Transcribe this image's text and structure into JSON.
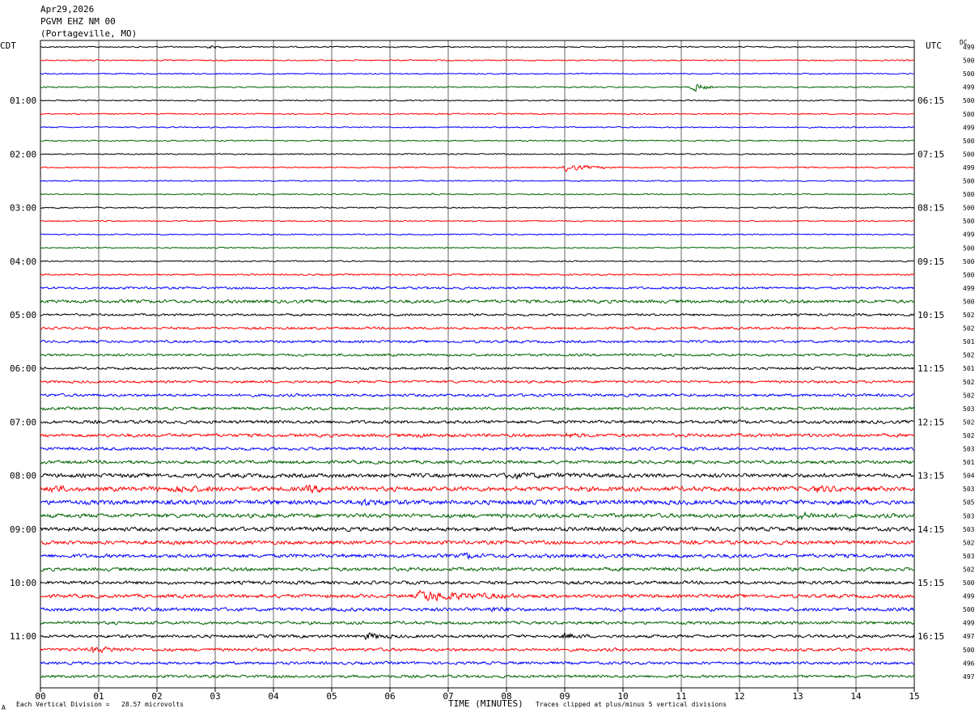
{
  "header": {
    "date": "Apr29,2026",
    "station": "PGVM EHZ NM 00",
    "location": "(Portageville, MO)"
  },
  "left_zone_label": "CDT",
  "right_zone_label": "UTC",
  "dc_label": "DC",
  "footer": {
    "scale_note": "Each Vertical Division =   28.57 microvolts",
    "clip_note": "Traces clipped at plus/minus 5 vertical divisions",
    "corner_mark": "A"
  },
  "colors": {
    "trace_cycle": [
      "#000000",
      "#ff0000",
      "#0000ff",
      "#006400"
    ],
    "grid": "#000000",
    "background": "#ffffff"
  },
  "chart_data": {
    "type": "line",
    "subtype": "helicorder",
    "xlabel": "TIME (MINUTES)",
    "x_ticks": [
      "00",
      "01",
      "02",
      "03",
      "04",
      "05",
      "06",
      "07",
      "08",
      "09",
      "10",
      "11",
      "12",
      "13",
      "14",
      "15"
    ],
    "xlim": [
      0,
      15
    ],
    "row_minutes": 15,
    "left_time_labels": [
      "01:00",
      "02:00",
      "03:00",
      "04:00",
      "05:00",
      "06:00",
      "07:00",
      "08:00",
      "09:00",
      "10:00",
      "11:00"
    ],
    "right_time_labels": [
      "06:15",
      "07:15",
      "08:15",
      "09:15",
      "10:15",
      "11:15",
      "12:15",
      "13:15",
      "14:15",
      "15:15",
      "16:15"
    ],
    "hour_label_rows": [
      4,
      8,
      12,
      16,
      20,
      24,
      28,
      32,
      36,
      40,
      44
    ],
    "dc_offsets": [
      499,
      500,
      500,
      499,
      500,
      500,
      499,
      500,
      500,
      499,
      500,
      500,
      500,
      500,
      499,
      500,
      500,
      500,
      499,
      500,
      502,
      502,
      501,
      502,
      501,
      502,
      502,
      503,
      502,
      502,
      503,
      501,
      504,
      503,
      505,
      503,
      503,
      502,
      503,
      502,
      500,
      499,
      500,
      499,
      497,
      500,
      496,
      497
    ],
    "row_amplitude": [
      1.0,
      1.0,
      1.0,
      1.0,
      1.0,
      1.0,
      1.0,
      1.0,
      1.0,
      1.0,
      1.0,
      1.0,
      1.0,
      1.0,
      1.0,
      1.0,
      1.0,
      1.3,
      1.8,
      2.6,
      1.8,
      1.9,
      2.0,
      2.0,
      1.9,
      2.0,
      2.2,
      2.2,
      2.6,
      2.6,
      2.4,
      2.6,
      3.2,
      3.6,
      3.6,
      3.2,
      3.2,
      3.0,
      3.0,
      2.8,
      2.6,
      2.8,
      2.8,
      2.4,
      2.4,
      2.4,
      2.2,
      2.2
    ],
    "events": [
      {
        "row": 0,
        "minute": 2.9,
        "amplitude": 2,
        "duration": 0.3
      },
      {
        "row": 3,
        "minute": 11.2,
        "amplitude": 8,
        "duration": 0.35
      },
      {
        "row": 9,
        "minute": 9.0,
        "amplitude": 5,
        "duration": 0.9
      },
      {
        "row": 11,
        "minute": 6.7,
        "amplitude": 3,
        "duration": 0.15
      },
      {
        "row": 29,
        "minute": 6.5,
        "amplitude": 3,
        "duration": 0.3
      },
      {
        "row": 29,
        "minute": 9.0,
        "amplitude": 3,
        "duration": 0.5
      },
      {
        "row": 32,
        "minute": 8.0,
        "amplitude": 2.5,
        "duration": 1.5
      },
      {
        "row": 33,
        "minute": 0.2,
        "amplitude": 5,
        "duration": 0.3
      },
      {
        "row": 33,
        "minute": 2.3,
        "amplitude": 4,
        "duration": 0.8
      },
      {
        "row": 33,
        "minute": 4.6,
        "amplitude": 5,
        "duration": 0.5
      },
      {
        "row": 33,
        "minute": 13.3,
        "amplitude": 4,
        "duration": 0.6
      },
      {
        "row": 34,
        "minute": 5.5,
        "amplitude": 4,
        "duration": 0.6
      },
      {
        "row": 35,
        "minute": 13.0,
        "amplitude": 4,
        "duration": 0.8
      },
      {
        "row": 38,
        "minute": 7.3,
        "amplitude": 4,
        "duration": 0.3
      },
      {
        "row": 41,
        "minute": 6.5,
        "amplitude": 7,
        "duration": 1.8
      },
      {
        "row": 42,
        "minute": 7.7,
        "amplitude": 3,
        "duration": 0.4
      },
      {
        "row": 44,
        "minute": 5.6,
        "amplitude": 5,
        "duration": 0.5
      },
      {
        "row": 44,
        "minute": 9.0,
        "amplitude": 4,
        "duration": 0.4
      },
      {
        "row": 45,
        "minute": 0.9,
        "amplitude": 4,
        "duration": 0.7
      }
    ]
  }
}
